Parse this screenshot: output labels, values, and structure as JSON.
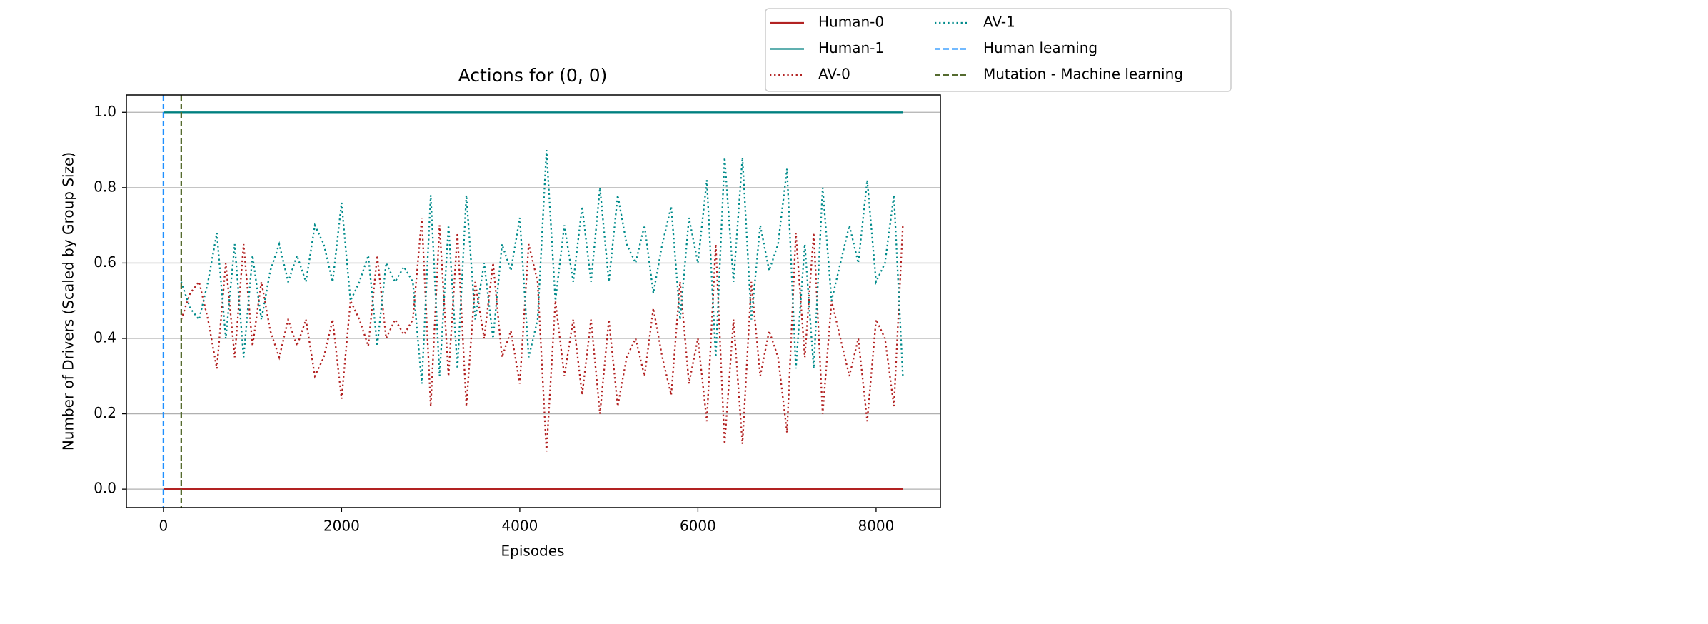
{
  "chart_data": {
    "type": "line",
    "title": "Actions for (0, 0)",
    "xlabel": "Episodes",
    "ylabel": "Number of Drivers (Scaled by Group Size)",
    "xlim": [
      -416,
      8722
    ],
    "ylim": [
      -0.049,
      1.046
    ],
    "xticks": [
      0,
      2000,
      4000,
      6000,
      8000
    ],
    "yticks": [
      {
        "value": 0,
        "label": "0.0"
      },
      {
        "value": 0.2,
        "label": "0.2"
      },
      {
        "value": 0.4,
        "label": "0.4"
      },
      {
        "value": 0.6,
        "label": "0.6"
      },
      {
        "value": 0.8,
        "label": "0.8"
      },
      {
        "value": 1,
        "label": "1.0"
      }
    ],
    "grid": "y",
    "legend": "upper right outside",
    "series": [
      {
        "name": "Human-0",
        "color": "#b22222",
        "linestyle": "solid",
        "x": [
          0,
          8300
        ],
        "values": [
          0,
          0
        ]
      },
      {
        "name": "Human-1",
        "color": "#008080",
        "linestyle": "solid",
        "x": [
          0,
          8300
        ],
        "values": [
          1,
          1
        ]
      },
      {
        "name": "AV-0",
        "color": "#b22222",
        "linestyle": "dotted",
        "x": [
          200,
          300,
          400,
          500,
          600,
          700,
          800,
          900,
          1000,
          1100,
          1200,
          1300,
          1400,
          1500,
          1600,
          1700,
          1800,
          1900,
          2000,
          2100,
          2200,
          2300,
          2400,
          2500,
          2600,
          2700,
          2800,
          2900,
          3000,
          3100,
          3200,
          3300,
          3400,
          3500,
          3600,
          3700,
          3800,
          3900,
          4000,
          4100,
          4200,
          4300,
          4400,
          4500,
          4600,
          4700,
          4800,
          4900,
          5000,
          5100,
          5200,
          5300,
          5400,
          5500,
          5600,
          5700,
          5800,
          5900,
          6000,
          6100,
          6200,
          6300,
          6400,
          6500,
          6600,
          6700,
          6800,
          6900,
          7000,
          7100,
          7200,
          7300,
          7400,
          7500,
          7600,
          7700,
          7800,
          7900,
          8000,
          8100,
          8200,
          8300
        ],
        "values": [
          0.45,
          0.52,
          0.55,
          0.45,
          0.32,
          0.6,
          0.35,
          0.65,
          0.38,
          0.55,
          0.42,
          0.35,
          0.45,
          0.38,
          0.45,
          0.3,
          0.35,
          0.45,
          0.24,
          0.5,
          0.45,
          0.38,
          0.62,
          0.4,
          0.45,
          0.41,
          0.45,
          0.72,
          0.22,
          0.7,
          0.3,
          0.68,
          0.22,
          0.55,
          0.4,
          0.6,
          0.35,
          0.42,
          0.28,
          0.65,
          0.55,
          0.1,
          0.5,
          0.3,
          0.45,
          0.25,
          0.45,
          0.2,
          0.45,
          0.22,
          0.35,
          0.4,
          0.3,
          0.48,
          0.35,
          0.25,
          0.55,
          0.28,
          0.4,
          0.18,
          0.65,
          0.12,
          0.45,
          0.12,
          0.55,
          0.3,
          0.42,
          0.35,
          0.15,
          0.68,
          0.35,
          0.68,
          0.2,
          0.5,
          0.4,
          0.3,
          0.4,
          0.18,
          0.45,
          0.4,
          0.22,
          0.7
        ]
      },
      {
        "name": "AV-1",
        "color": "#008b8b",
        "linestyle": "dotted",
        "x": [
          200,
          300,
          400,
          500,
          600,
          700,
          800,
          900,
          1000,
          1100,
          1200,
          1300,
          1400,
          1500,
          1600,
          1700,
          1800,
          1900,
          2000,
          2100,
          2200,
          2300,
          2400,
          2500,
          2600,
          2700,
          2800,
          2900,
          3000,
          3100,
          3200,
          3300,
          3400,
          3500,
          3600,
          3700,
          3800,
          3900,
          4000,
          4100,
          4200,
          4300,
          4400,
          4500,
          4600,
          4700,
          4800,
          4900,
          5000,
          5100,
          5200,
          5300,
          5400,
          5500,
          5600,
          5700,
          5800,
          5900,
          6000,
          6100,
          6200,
          6300,
          6400,
          6500,
          6600,
          6700,
          6800,
          6900,
          7000,
          7100,
          7200,
          7300,
          7400,
          7500,
          7600,
          7700,
          7800,
          7900,
          8000,
          8100,
          8200,
          8300
        ],
        "values": [
          0.55,
          0.48,
          0.45,
          0.55,
          0.68,
          0.4,
          0.65,
          0.35,
          0.62,
          0.45,
          0.58,
          0.65,
          0.55,
          0.62,
          0.55,
          0.7,
          0.65,
          0.55,
          0.76,
          0.5,
          0.55,
          0.62,
          0.38,
          0.6,
          0.55,
          0.59,
          0.55,
          0.28,
          0.78,
          0.3,
          0.7,
          0.32,
          0.78,
          0.45,
          0.6,
          0.4,
          0.65,
          0.58,
          0.72,
          0.35,
          0.45,
          0.9,
          0.5,
          0.7,
          0.55,
          0.75,
          0.55,
          0.8,
          0.55,
          0.78,
          0.65,
          0.6,
          0.7,
          0.52,
          0.65,
          0.75,
          0.45,
          0.72,
          0.6,
          0.82,
          0.35,
          0.88,
          0.55,
          0.88,
          0.45,
          0.7,
          0.58,
          0.65,
          0.85,
          0.32,
          0.65,
          0.32,
          0.8,
          0.5,
          0.6,
          0.7,
          0.6,
          0.82,
          0.55,
          0.6,
          0.78,
          0.3
        ]
      }
    ],
    "vlines": [
      {
        "name": "Human learning",
        "color": "#1e90ff",
        "linestyle": "dashed",
        "x": 0
      },
      {
        "name": "Mutation - Machine learning",
        "color": "#556b2f",
        "linestyle": "dashed",
        "x": 200
      }
    ]
  }
}
